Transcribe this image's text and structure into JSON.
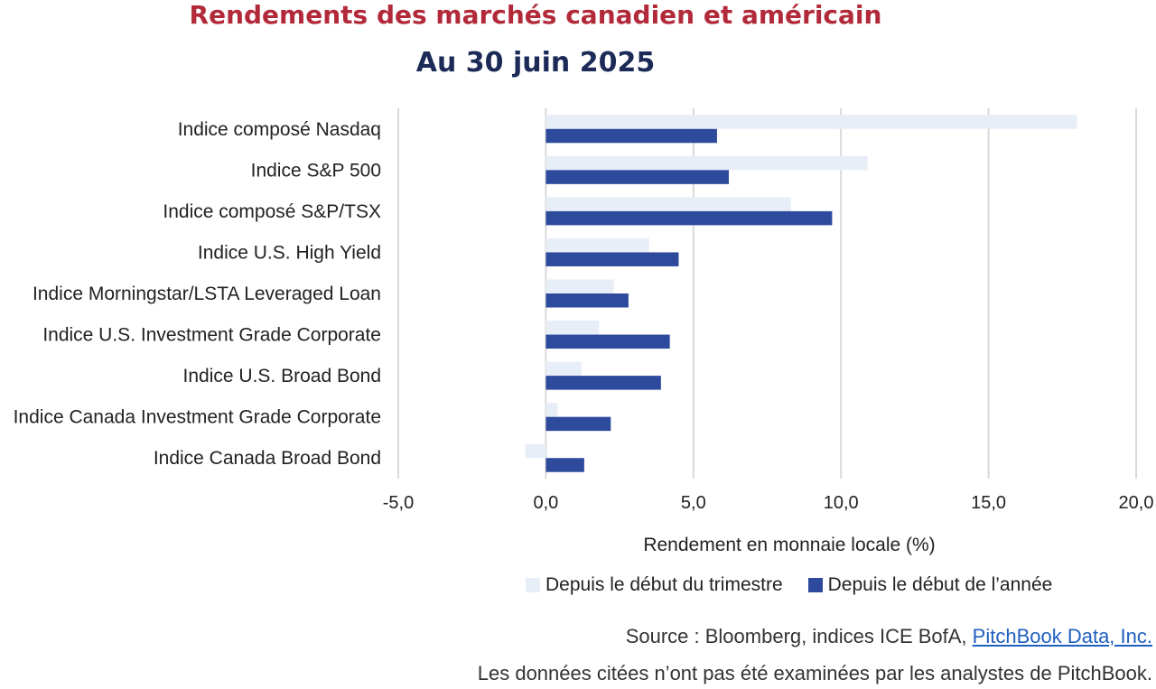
{
  "colors": {
    "title": "#b22a3a",
    "subtitle": "#1c2a57",
    "quarter": "#e8eef8",
    "year": "#2e4a9c",
    "grid": "#d9d9d9",
    "link": "#1f5fbf"
  },
  "chart_data": {
    "type": "bar",
    "orientation": "horizontal",
    "title": "Rendements des marchés canadien et américain",
    "subtitle": "Au 30 juin 2025",
    "xlabel": "Rendement en monnaie locale (%)",
    "xlim": [
      -5,
      20
    ],
    "xticks": [
      "-5,0",
      "0,0",
      "5,0",
      "10,0",
      "15,0",
      "20,0"
    ],
    "grid": true,
    "legend_position": "bottom",
    "categories": [
      "Indice composé Nasdaq",
      "Indice S&P 500",
      "Indice composé S&P/TSX",
      "Indice U.S. High Yield",
      "Indice Morningstar/LSTA Leveraged Loan",
      "Indice U.S. Investment Grade Corporate",
      "Indice U.S. Broad Bond",
      "Indice Canada Investment Grade Corporate",
      "Indice Canada Broad Bond"
    ],
    "series": [
      {
        "name": "Depuis le début du trimestre",
        "values": [
          18.0,
          10.9,
          8.3,
          3.5,
          2.3,
          1.8,
          1.2,
          0.4,
          -0.7
        ]
      },
      {
        "name": "Depuis le début de l’année",
        "values": [
          5.8,
          6.2,
          9.7,
          4.5,
          2.8,
          4.2,
          3.9,
          2.2,
          1.3
        ]
      }
    ]
  },
  "footer": {
    "source_prefix": "Source : Bloomberg, indices ICE BofA, ",
    "source_link": "PitchBook Data, Inc.",
    "note": "Les données citées n’ont pas été examinées par les analystes de PitchBook."
  }
}
